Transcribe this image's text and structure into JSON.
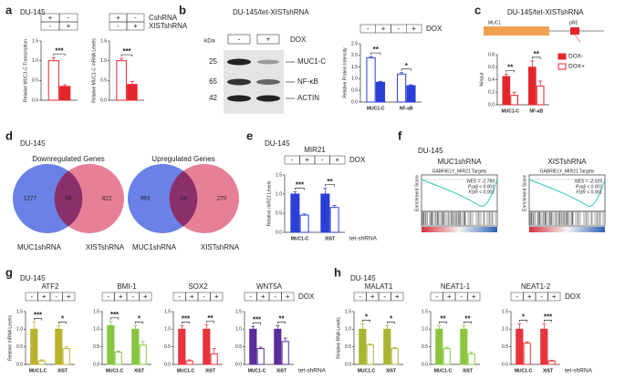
{
  "panels": [
    {
      "label": "a",
      "cell_line": "DU-145"
    },
    {
      "label": "b"
    },
    {
      "label": "c"
    },
    {
      "label": "d",
      "cell_line": "DU-145"
    },
    {
      "label": "e",
      "cell_line": "DU-145"
    },
    {
      "label": "f",
      "cell_line": "DU-145"
    },
    {
      "label": "g",
      "cell_line": "DU-145"
    },
    {
      "label": "h",
      "cell_line": "DU-145"
    }
  ],
  "blot": {
    "title": "DU-145/tet-XISTshRNA",
    "unit": "kDa",
    "lanes": [
      "-",
      "+"
    ],
    "treatment": "DOX",
    "markers": [
      25,
      65,
      42
    ],
    "bands": [
      "MUC1-C",
      "NF-κB",
      "ACTIN"
    ]
  },
  "gene_diagram": {
    "title": "DU-145/tet-XISTshRNA",
    "labels": [
      "MUC1",
      "pRE"
    ]
  },
  "venn": [
    {
      "title": "Downregulated Genes",
      "left_only": 1277,
      "overlap": 56,
      "right_only": 422,
      "sets": [
        "MUC1shRNA",
        "XISTshRNA"
      ]
    },
    {
      "title": "Upregulated Genes",
      "left_only": 993,
      "overlap": 19,
      "right_only": 270,
      "sets": [
        "MUC1shRNA",
        "XISTshRNA"
      ]
    }
  ],
  "gsea": [
    {
      "title": "MUC1shRNA",
      "gene_set": "GABRIELY_MIR21 Targets",
      "ylabel": "Enrichment Score",
      "stats": [
        "NES = -1.783",
        "P.adj < 0.001",
        "FDR < 0.001"
      ]
    },
    {
      "title": "XISTshRNA",
      "gene_set": "GABRIELY_MIR21 Targets",
      "ylabel": "Enrichment Score",
      "stats": [
        "NES = -2.025",
        "P.adj < 0.001",
        "FDR < 0.001"
      ]
    }
  ],
  "chart_data": [
    {
      "type": "bar",
      "ylabel": "Relative MUC1-C Transcription",
      "conditions": [
        [
          "+",
          "-"
        ],
        [
          "-",
          "+"
        ]
      ],
      "series": [
        {
          "color": "#e4262c",
          "filled": false,
          "values": [
            1.0
          ],
          "errors": [
            0.08
          ]
        },
        {
          "color": "#e4262c",
          "filled": true,
          "values": [
            0.35
          ],
          "errors": [
            0.04
          ]
        }
      ],
      "significance": [
        "***"
      ],
      "ylim": [
        0,
        1.5
      ],
      "yticks": [
        {
          "value": 0,
          "label": "0.0"
        },
        {
          "value": 0.5,
          "label": "0.5"
        },
        {
          "value": 1,
          "label": "1.0"
        },
        {
          "value": 1.5,
          "label": "1.5"
        }
      ]
    },
    {
      "type": "bar",
      "ylabel": "Relative MUC1-C mRNA Levels",
      "conditions": [
        [
          "+",
          "-"
        ],
        [
          "-",
          "+"
        ]
      ],
      "condition_names": [
        "CshRNA",
        "XISTshRNA"
      ],
      "series": [
        {
          "color": "#e4262c",
          "filled": false,
          "values": [
            1.0
          ],
          "errors": [
            0.06
          ]
        },
        {
          "color": "#e4262c",
          "filled": true,
          "values": [
            0.4
          ],
          "errors": [
            0.07
          ]
        }
      ],
      "significance": [
        "***"
      ],
      "ylim": [
        0,
        1.5
      ],
      "yticks": [
        {
          "value": 0,
          "label": "0.0"
        },
        {
          "value": 0.5,
          "label": "0.5"
        },
        {
          "value": 1,
          "label": "1.0"
        },
        {
          "value": 1.5,
          "label": "1.5"
        }
      ]
    },
    {
      "type": "bar",
      "ylabel": "Relative Protein Intensity",
      "categories": [
        "MUC1-C",
        "NF-κB"
      ],
      "conditions": [
        [
          "-",
          "+",
          "-",
          "+"
        ]
      ],
      "condition_names": [
        "DOX"
      ],
      "series": [
        {
          "color": "#2b3fd6",
          "filled": false,
          "values": [
            1.9,
            1.2
          ],
          "errors": [
            0.05,
            0.06
          ]
        },
        {
          "color": "#2b3fd6",
          "filled": true,
          "values": [
            0.85,
            0.7
          ],
          "errors": [
            0.04,
            0.04
          ]
        }
      ],
      "significance": [
        "**",
        "*"
      ],
      "ylim": [
        0,
        2.5
      ],
      "yticks": [
        {
          "value": 0,
          "label": "0.0"
        },
        {
          "value": 0.5,
          "label": "0.5"
        },
        {
          "value": 1,
          "label": "1.0"
        },
        {
          "value": 1.5,
          "label": "1.5"
        },
        {
          "value": 2,
          "label": "2.0"
        },
        {
          "value": 2.5,
          "label": "2.5"
        }
      ]
    },
    {
      "type": "bar",
      "ylabel": "%Input",
      "categories": [
        "MUC1-C",
        "NF-κB"
      ],
      "series": [
        {
          "name": "DOX-",
          "color": "#e4262c",
          "filled": true,
          "values": [
            0.45,
            0.6
          ],
          "errors": [
            0.04,
            0.1
          ]
        },
        {
          "name": "DOX+",
          "color": "#e4262c",
          "filled": false,
          "values": [
            0.15,
            0.3
          ],
          "errors": [
            0.05,
            0.08
          ]
        }
      ],
      "significance": [
        "**",
        "**"
      ],
      "ylim": [
        0,
        0.8
      ],
      "yticks": [
        {
          "value": 0,
          "label": "0.0"
        },
        {
          "value": 0.2,
          "label": "0.2"
        },
        {
          "value": 0.4,
          "label": "0.4"
        },
        {
          "value": 0.6,
          "label": "0.6"
        },
        {
          "value": 0.8,
          "label": "0.8"
        }
      ]
    },
    {
      "type": "bar",
      "title": "MIR21",
      "ylabel": "Relative miR21 Levels",
      "categories": [
        "MUC1-C",
        "XIST"
      ],
      "x_title": "tet-shRNA",
      "conditions": [
        [
          "-",
          "+",
          "-",
          "+"
        ]
      ],
      "condition_names": [
        "DOX"
      ],
      "series": [
        {
          "color": "#2b3fd6",
          "filled": true,
          "values": [
            1.0,
            1.0
          ],
          "errors": [
            0.06,
            0.15
          ]
        },
        {
          "color": "#2b3fd6",
          "filled": false,
          "values": [
            0.45,
            0.65
          ],
          "errors": [
            0.03,
            0.05
          ]
        }
      ],
      "significance": [
        "***",
        "**"
      ],
      "ylim": [
        0,
        1.5
      ],
      "yticks": [
        {
          "value": 0,
          "label": "0.0"
        },
        {
          "value": 0.5,
          "label": "0.5"
        },
        {
          "value": 1,
          "label": "1.0"
        },
        {
          "value": 1.5,
          "label": "1.5"
        }
      ]
    },
    {
      "type": "bar",
      "title": "ATF2",
      "ylabel": "Relative mRNA Levels",
      "categories": [
        "MUC1-C",
        "XIST"
      ],
      "conditions": [
        [
          "-",
          "+",
          "-",
          "+"
        ]
      ],
      "series": [
        {
          "color": "#b8b32b",
          "filled": true,
          "values": [
            1.0,
            1.0
          ],
          "errors": [
            0.2,
            0.1
          ]
        },
        {
          "color": "#b8b32b",
          "filled": false,
          "values": [
            0.1,
            0.45
          ],
          "errors": [
            0.03,
            0.05
          ]
        }
      ],
      "significance": [
        "***",
        "*"
      ],
      "ylim": [
        0,
        1.5
      ],
      "yticks": [
        {
          "value": 0,
          "label": "0.0"
        },
        {
          "value": 0.5,
          "label": "0.5"
        },
        {
          "value": 1,
          "label": "1.0"
        },
        {
          "value": 1.5,
          "label": "1.5"
        }
      ]
    },
    {
      "type": "bar",
      "title": "BMI-1",
      "categories": [
        "MUC1-C",
        "XIST"
      ],
      "conditions": [
        [
          "-",
          "+",
          "-",
          "+"
        ]
      ],
      "series": [
        {
          "color": "#86c540",
          "filled": true,
          "values": [
            1.1,
            1.0
          ],
          "errors": [
            0.12,
            0.1
          ]
        },
        {
          "color": "#86c540",
          "filled": false,
          "values": [
            0.35,
            0.55
          ],
          "errors": [
            0.03,
            0.1
          ]
        }
      ],
      "significance": [
        "***",
        "*"
      ],
      "ylim": [
        0,
        1.5
      ],
      "yticks": [
        {
          "value": 0,
          "label": "0.0"
        },
        {
          "value": 0.5,
          "label": "0.5"
        },
        {
          "value": 1,
          "label": "1.0"
        },
        {
          "value": 1.5,
          "label": "1.5"
        }
      ]
    },
    {
      "type": "bar",
      "title": "SOX2",
      "categories": [
        "MUC1-C",
        "XIST"
      ],
      "conditions": [
        [
          "-",
          "+",
          "-",
          "+"
        ]
      ],
      "series": [
        {
          "color": "#e7333b",
          "filled": true,
          "values": [
            1.0,
            1.0
          ],
          "errors": [
            0.1,
            0.12
          ]
        },
        {
          "color": "#e7333b",
          "filled": false,
          "values": [
            0.1,
            0.3
          ],
          "errors": [
            0.03,
            0.15
          ]
        }
      ],
      "significance": [
        "***",
        "**"
      ],
      "ylim": [
        0,
        1.5
      ],
      "yticks": [
        {
          "value": 0,
          "label": "0.0"
        },
        {
          "value": 0.5,
          "label": "0.5"
        },
        {
          "value": 1,
          "label": "1.0"
        },
        {
          "value": 1.5,
          "label": "1.5"
        }
      ]
    },
    {
      "type": "bar",
      "title": "WNT5A",
      "categories": [
        "MUC1-C",
        "XIST"
      ],
      "x_title": "tet-shRNA",
      "conditions": [
        [
          "-",
          "+",
          "-",
          "+"
        ]
      ],
      "condition_names": [
        "DOX"
      ],
      "series": [
        {
          "color": "#5a2d9c",
          "filled": true,
          "values": [
            1.0,
            1.0
          ],
          "errors": [
            0.08,
            0.1
          ]
        },
        {
          "color": "#5a2d9c",
          "filled": false,
          "values": [
            0.45,
            0.65
          ],
          "errors": [
            0.04,
            0.1
          ]
        }
      ],
      "significance": [
        "***",
        "**"
      ],
      "ylim": [
        0,
        1.5
      ],
      "yticks": [
        {
          "value": 0,
          "label": "0.0"
        },
        {
          "value": 0.5,
          "label": "0.5"
        },
        {
          "value": 1,
          "label": "1.0"
        },
        {
          "value": 1.5,
          "label": "1.5"
        }
      ]
    },
    {
      "type": "bar",
      "title": "MALAT1",
      "ylabel": "Relative RNA Levels",
      "categories": [
        "MUC1-C",
        "XIST"
      ],
      "conditions": [
        [
          "-",
          "+",
          "-",
          "+"
        ]
      ],
      "series": [
        {
          "color": "#aab532",
          "filled": true,
          "values": [
            1.0,
            1.0
          ],
          "errors": [
            0.15,
            0.1
          ]
        },
        {
          "color": "#aab532",
          "filled": false,
          "values": [
            0.55,
            0.45
          ],
          "errors": [
            0.03,
            0.03
          ]
        }
      ],
      "significance": [
        "*",
        "*"
      ],
      "ylim": [
        0,
        1.5
      ],
      "yticks": [
        {
          "value": 0,
          "label": "0.0"
        },
        {
          "value": 0.5,
          "label": "0.5"
        },
        {
          "value": 1,
          "label": "1.0"
        },
        {
          "value": 1.5,
          "label": "1.5"
        }
      ]
    },
    {
      "type": "bar",
      "title": "NEAT1-1",
      "categories": [
        "MUC1-C",
        "XIST"
      ],
      "conditions": [
        [
          "-",
          "+",
          "-",
          "+"
        ]
      ],
      "series": [
        {
          "color": "#8cc63f",
          "filled": true,
          "values": [
            1.0,
            1.0
          ],
          "errors": [
            0.1,
            0.1
          ]
        },
        {
          "color": "#8cc63f",
          "filled": false,
          "values": [
            0.45,
            0.3
          ],
          "errors": [
            0.04,
            0.05
          ]
        }
      ],
      "significance": [
        "**",
        "**"
      ],
      "ylim": [
        0,
        1.5
      ],
      "yticks": [
        {
          "value": 0,
          "label": "0.0"
        },
        {
          "value": 0.5,
          "label": "0.5"
        },
        {
          "value": 1,
          "label": "1.0"
        },
        {
          "value": 1.5,
          "label": "1.5"
        }
      ]
    },
    {
      "type": "bar",
      "title": "NEAT1-2",
      "categories": [
        "MUC1-C",
        "XIST"
      ],
      "x_title": "tet-shRNA",
      "conditions": [
        [
          "-",
          "+",
          "-",
          "+"
        ]
      ],
      "condition_names": [
        "DOX"
      ],
      "series": [
        {
          "color": "#e7333b",
          "filled": true,
          "values": [
            1.0,
            1.0
          ],
          "errors": [
            0.15,
            0.15
          ]
        },
        {
          "color": "#e7333b",
          "filled": false,
          "values": [
            0.6,
            0.1
          ],
          "errors": [
            0.04,
            0.02
          ]
        }
      ],
      "significance": [
        "*",
        "***"
      ],
      "ylim": [
        0,
        1.5
      ],
      "yticks": [
        {
          "value": 0,
          "label": "0.0"
        },
        {
          "value": 0.5,
          "label": "0.5"
        },
        {
          "value": 1,
          "label": "1.0"
        },
        {
          "value": 1.5,
          "label": "1.5"
        }
      ]
    }
  ]
}
